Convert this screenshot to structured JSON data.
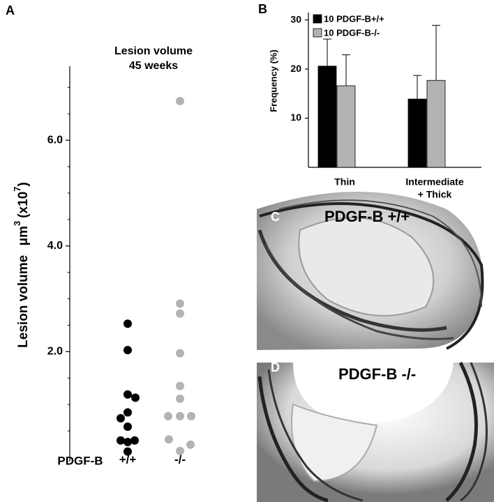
{
  "chart_data": [
    {
      "type": "strip",
      "panel": "A",
      "title": [
        "Lesion volume",
        "45 weeks"
      ],
      "y_label": {
        "text": "Lesion volume",
        "unit": "μm",
        "unit_power": "3",
        "scale": "(x10",
        "scale_power": "7",
        "end": ")"
      },
      "group_title": "PDGF-B",
      "groups": [
        {
          "label": "+/+",
          "color": "#000000",
          "values": [
            2.53,
            2.03,
            1.19,
            1.13,
            0.85,
            0.74,
            0.58,
            0.32,
            0.29,
            0.32,
            0.11
          ]
        },
        {
          "label": "-/-",
          "color": "#b3b3b3",
          "values": [
            6.74,
            2.91,
            2.72,
            1.97,
            1.35,
            1.11,
            0.78,
            0.78,
            0.78,
            0.34,
            0.24,
            0.12
          ]
        }
      ],
      "ylim": [
        0,
        7.4
      ],
      "yticks": [
        {
          "value": 2,
          "label": "2.0"
        },
        {
          "value": 4,
          "label": "4.0"
        },
        {
          "value": 6,
          "label": "6.0"
        }
      ],
      "minor_yticks": [
        0.5,
        1,
        1.5,
        2.5,
        3,
        3.5,
        4.5,
        5,
        5.5,
        6.5,
        7
      ]
    },
    {
      "type": "bar",
      "panel": "B",
      "y_label": "Frequency (%)",
      "categories": [
        [
          "Thin"
        ],
        [
          "Intermediate",
          "+ Thick"
        ]
      ],
      "series": [
        {
          "name": "10 PDGF-B+/+",
          "color": "#000000",
          "values": [
            20.6,
            13.9
          ],
          "errors": [
            5.5,
            4.8
          ]
        },
        {
          "name": "10 PDGF-B-/-",
          "color": "#b3b3b3",
          "values": [
            16.6,
            17.7
          ],
          "errors": [
            6.3,
            11.2
          ]
        }
      ],
      "ylim": [
        0,
        31.5
      ],
      "yticks": [
        10,
        20,
        30
      ]
    }
  ],
  "images": [
    {
      "label": "C",
      "title": "PDGF-B +/+"
    },
    {
      "label": "D",
      "title": "PDGF-B -/-"
    }
  ]
}
